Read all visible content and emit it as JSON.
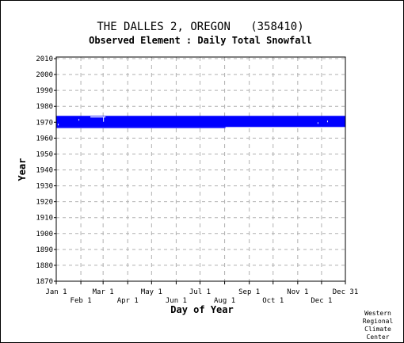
{
  "chart_data": {
    "type": "bar",
    "title": "THE DALLES 2, OREGON   (358410)",
    "subtitle": "Observed Element : Daily Total Snowfall",
    "xlabel": "Day of Year",
    "ylabel": "Year",
    "xlim": [
      1,
      365
    ],
    "ylim": [
      1870,
      2011
    ],
    "y_ticks": [
      1870,
      1880,
      1890,
      1900,
      1910,
      1920,
      1930,
      1940,
      1950,
      1960,
      1970,
      1980,
      1990,
      2000,
      2010
    ],
    "x_ticks_top_row": [
      {
        "label": "Jan 1",
        "day": 1
      },
      {
        "label": "Mar 1",
        "day": 60
      },
      {
        "label": "May 1",
        "day": 121
      },
      {
        "label": "Jul 1",
        "day": 182
      },
      {
        "label": "Sep 1",
        "day": 244
      },
      {
        "label": "Nov 1",
        "day": 305
      },
      {
        "label": "Dec 31",
        "day": 365
      }
    ],
    "x_ticks_bottom_row": [
      {
        "label": "Feb 1",
        "day": 32
      },
      {
        "label": "Apr 1",
        "day": 91
      },
      {
        "label": "Jun 1",
        "day": 152
      },
      {
        "label": "Aug 1",
        "day": 213
      },
      {
        "label": "Oct 1",
        "day": 274
      },
      {
        "label": "Dec 1",
        "day": 335
      }
    ],
    "grid": true,
    "data_color": "#0000ff",
    "coverage": [
      {
        "day_start": 1,
        "day_end": 365,
        "year_start": 1967,
        "year_end": 1974
      },
      {
        "day_start": 1,
        "day_end": 214,
        "year_start": 1966.3,
        "year_end": 1967
      }
    ],
    "gaps": [
      {
        "day_start": 44,
        "day_end": 63,
        "year_start": 1973.0,
        "year_end": 1973.6
      },
      {
        "day_start": 60,
        "day_end": 61,
        "year_start": 1970.3,
        "year_end": 1973.3
      },
      {
        "day_start": 3,
        "day_end": 4,
        "year_start": 1968.0,
        "year_end": 1969.0
      },
      {
        "day_start": 29,
        "day_end": 30,
        "year_start": 1971.0,
        "year_end": 1972.0
      },
      {
        "day_start": 330,
        "day_end": 331,
        "year_start": 1969.0,
        "year_end": 1970.0
      },
      {
        "day_start": 342,
        "day_end": 343,
        "year_start": 1970.0,
        "year_end": 1971.0
      }
    ],
    "credit": [
      "Western",
      "Regional",
      "Climate",
      "Center"
    ]
  }
}
